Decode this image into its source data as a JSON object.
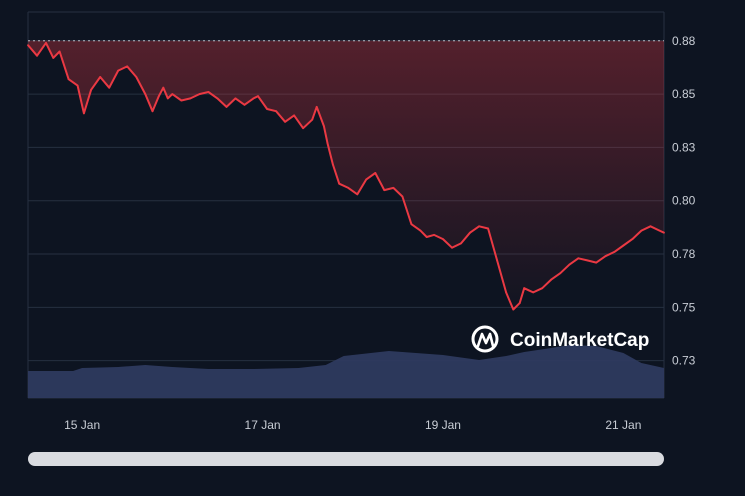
{
  "watermark": {
    "text": "CoinMarketCap",
    "icon": "coinmarketcap-logo-icon"
  },
  "colors": {
    "background": "#0d1421",
    "grid": "#263041",
    "price_line": "#ea3943",
    "area_fill": "#ea3943",
    "volume_fill": "#2e3a5f",
    "tick_text": "#c9ced6",
    "scrollbar": "#d9dbe0"
  },
  "chart_data": {
    "type": "area",
    "title": "",
    "xlabel": "",
    "ylabel": "",
    "grid": true,
    "y_axis_position": "right",
    "ylim": [
      0.7125,
      0.8935
    ],
    "y_ticks": [
      "0.88",
      "0.85",
      "0.83",
      "0.80",
      "0.78",
      "0.75",
      "0.73"
    ],
    "y_tick_values": [
      0.88,
      0.855,
      0.83,
      0.805,
      0.78,
      0.755,
      0.73
    ],
    "x_ticks": [
      "15 Jan",
      "17 Jan",
      "19 Jan",
      "21 Jan"
    ],
    "x_tick_values": [
      0.6,
      2.6,
      4.6,
      6.6
    ],
    "x_range": [
      0,
      7.05
    ],
    "reference_line": {
      "value": 0.88,
      "style": "dotted"
    },
    "series": [
      {
        "kind": "price",
        "x": [
          0,
          0.1,
          0.2,
          0.28,
          0.35,
          0.45,
          0.55,
          0.62,
          0.7,
          0.8,
          0.9,
          1.0,
          1.1,
          1.2,
          1.3,
          1.38,
          1.45,
          1.5,
          1.55,
          1.6,
          1.7,
          1.8,
          1.9,
          2.0,
          2.1,
          2.2,
          2.3,
          2.4,
          2.5,
          2.55,
          2.65,
          2.75,
          2.85,
          2.95,
          3.05,
          3.15,
          3.2,
          3.28,
          3.32,
          3.38,
          3.45,
          3.55,
          3.65,
          3.75,
          3.85,
          3.95,
          4.05,
          4.15,
          4.25,
          4.35,
          4.42,
          4.5,
          4.6,
          4.7,
          4.8,
          4.9,
          5.0,
          5.1,
          5.2,
          5.3,
          5.38,
          5.45,
          5.5,
          5.55,
          5.6,
          5.7,
          5.8,
          5.9,
          6.0,
          6.1,
          6.2,
          6.3,
          6.4,
          6.5,
          6.6,
          6.7,
          6.8,
          6.9,
          7.0,
          7.05
        ],
        "values": [
          0.878,
          0.873,
          0.879,
          0.872,
          0.875,
          0.862,
          0.859,
          0.846,
          0.857,
          0.863,
          0.858,
          0.866,
          0.868,
          0.863,
          0.855,
          0.847,
          0.854,
          0.858,
          0.853,
          0.855,
          0.852,
          0.853,
          0.855,
          0.856,
          0.853,
          0.849,
          0.853,
          0.85,
          0.853,
          0.854,
          0.848,
          0.847,
          0.842,
          0.845,
          0.839,
          0.843,
          0.849,
          0.84,
          0.832,
          0.822,
          0.813,
          0.811,
          0.808,
          0.815,
          0.818,
          0.81,
          0.811,
          0.807,
          0.794,
          0.791,
          0.788,
          0.789,
          0.787,
          0.783,
          0.785,
          0.79,
          0.793,
          0.792,
          0.777,
          0.762,
          0.754,
          0.757,
          0.764,
          0.763,
          0.762,
          0.764,
          0.768,
          0.771,
          0.775,
          0.778,
          0.777,
          0.776,
          0.779,
          0.781,
          0.784,
          0.787,
          0.791,
          0.793,
          0.791,
          0.79
        ]
      },
      {
        "kind": "volume",
        "x": [
          0,
          0.5,
          0.6,
          1.0,
          1.3,
          1.6,
          2.0,
          2.5,
          3.0,
          3.3,
          3.5,
          3.8,
          4.0,
          4.3,
          4.6,
          5.0,
          5.3,
          5.5,
          5.8,
          6.0,
          6.3,
          6.6,
          6.8,
          7.05
        ],
        "values": [
          0.27,
          0.27,
          0.3,
          0.31,
          0.33,
          0.31,
          0.29,
          0.29,
          0.3,
          0.33,
          0.42,
          0.45,
          0.47,
          0.45,
          0.43,
          0.38,
          0.42,
          0.46,
          0.5,
          0.53,
          0.52,
          0.45,
          0.35,
          0.3
        ]
      }
    ]
  }
}
